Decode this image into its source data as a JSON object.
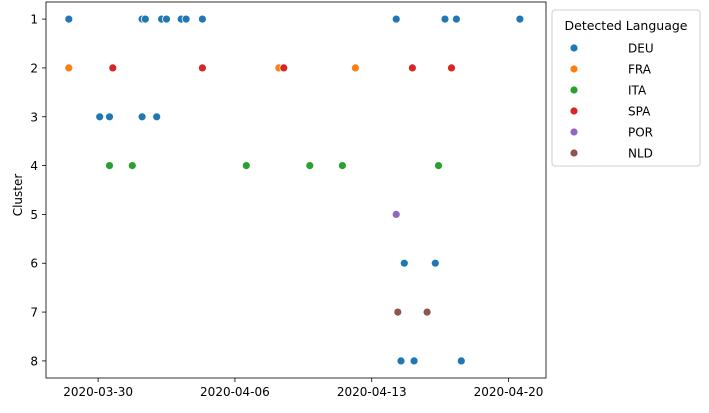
{
  "chart_data": {
    "type": "scatter",
    "title": "",
    "xlabel": "",
    "ylabel": "Cluster",
    "x_tick_labels": [
      "2020-03-30",
      "2020-04-06",
      "2020-04-13",
      "2020-04-20"
    ],
    "y_tick_labels": [
      "1",
      "2",
      "3",
      "4",
      "5",
      "6",
      "7",
      "8"
    ],
    "xlim": [
      "2020-03-27T08:00",
      "2020-04-21T22:00"
    ],
    "ylim": [
      8.35,
      0.65
    ],
    "y_inverted": true,
    "grid": false,
    "legend": {
      "title": "Detected Language",
      "placement": "outside-top-right"
    },
    "series": [
      {
        "name": "DEU",
        "color": "#1f77b4",
        "points": [
          {
            "x": "2020-03-28T12:00",
            "y": 1
          },
          {
            "x": "2020-04-01T06:00",
            "y": 1
          },
          {
            "x": "2020-04-01T10:00",
            "y": 1
          },
          {
            "x": "2020-04-02T06:00",
            "y": 1
          },
          {
            "x": "2020-04-02T12:00",
            "y": 1
          },
          {
            "x": "2020-04-03T06:00",
            "y": 1
          },
          {
            "x": "2020-04-03T12:00",
            "y": 1
          },
          {
            "x": "2020-04-04T08:00",
            "y": 1
          },
          {
            "x": "2020-04-14T06:00",
            "y": 1
          },
          {
            "x": "2020-04-16T18:00",
            "y": 1
          },
          {
            "x": "2020-04-17T08:00",
            "y": 1
          },
          {
            "x": "2020-04-20T14:00",
            "y": 1
          },
          {
            "x": "2020-03-30T02:00",
            "y": 3
          },
          {
            "x": "2020-03-30T14:00",
            "y": 3
          },
          {
            "x": "2020-04-01T06:00",
            "y": 3
          },
          {
            "x": "2020-04-02T00:00",
            "y": 3
          },
          {
            "x": "2020-04-14T16:00",
            "y": 6
          },
          {
            "x": "2020-04-16T06:00",
            "y": 6
          },
          {
            "x": "2020-04-14T12:00",
            "y": 8
          },
          {
            "x": "2020-04-15T04:00",
            "y": 8
          },
          {
            "x": "2020-04-17T14:00",
            "y": 8
          }
        ]
      },
      {
        "name": "FRA",
        "color": "#ff7f0e",
        "points": [
          {
            "x": "2020-03-28T12:00",
            "y": 2
          },
          {
            "x": "2020-04-08T06:00",
            "y": 2
          },
          {
            "x": "2020-04-12T04:00",
            "y": 2
          }
        ]
      },
      {
        "name": "ITA",
        "color": "#2ca02c",
        "points": [
          {
            "x": "2020-03-30T14:00",
            "y": 4
          },
          {
            "x": "2020-03-31T18:00",
            "y": 4
          },
          {
            "x": "2020-04-06T14:00",
            "y": 4
          },
          {
            "x": "2020-04-09T20:00",
            "y": 4
          },
          {
            "x": "2020-04-11T12:00",
            "y": 4
          },
          {
            "x": "2020-04-16T10:00",
            "y": 4
          }
        ]
      },
      {
        "name": "SPA",
        "color": "#d62728",
        "points": [
          {
            "x": "2020-03-30T18:00",
            "y": 2
          },
          {
            "x": "2020-04-04T08:00",
            "y": 2
          },
          {
            "x": "2020-04-08T12:00",
            "y": 2
          },
          {
            "x": "2020-04-15T02:00",
            "y": 2
          },
          {
            "x": "2020-04-17T02:00",
            "y": 2
          }
        ]
      },
      {
        "name": "POR",
        "color": "#9467bd",
        "points": [
          {
            "x": "2020-04-14T06:00",
            "y": 5
          }
        ]
      },
      {
        "name": "NLD",
        "color": "#8c564b",
        "points": [
          {
            "x": "2020-04-14T08:00",
            "y": 7
          },
          {
            "x": "2020-04-15T20:00",
            "y": 7
          }
        ]
      }
    ]
  }
}
